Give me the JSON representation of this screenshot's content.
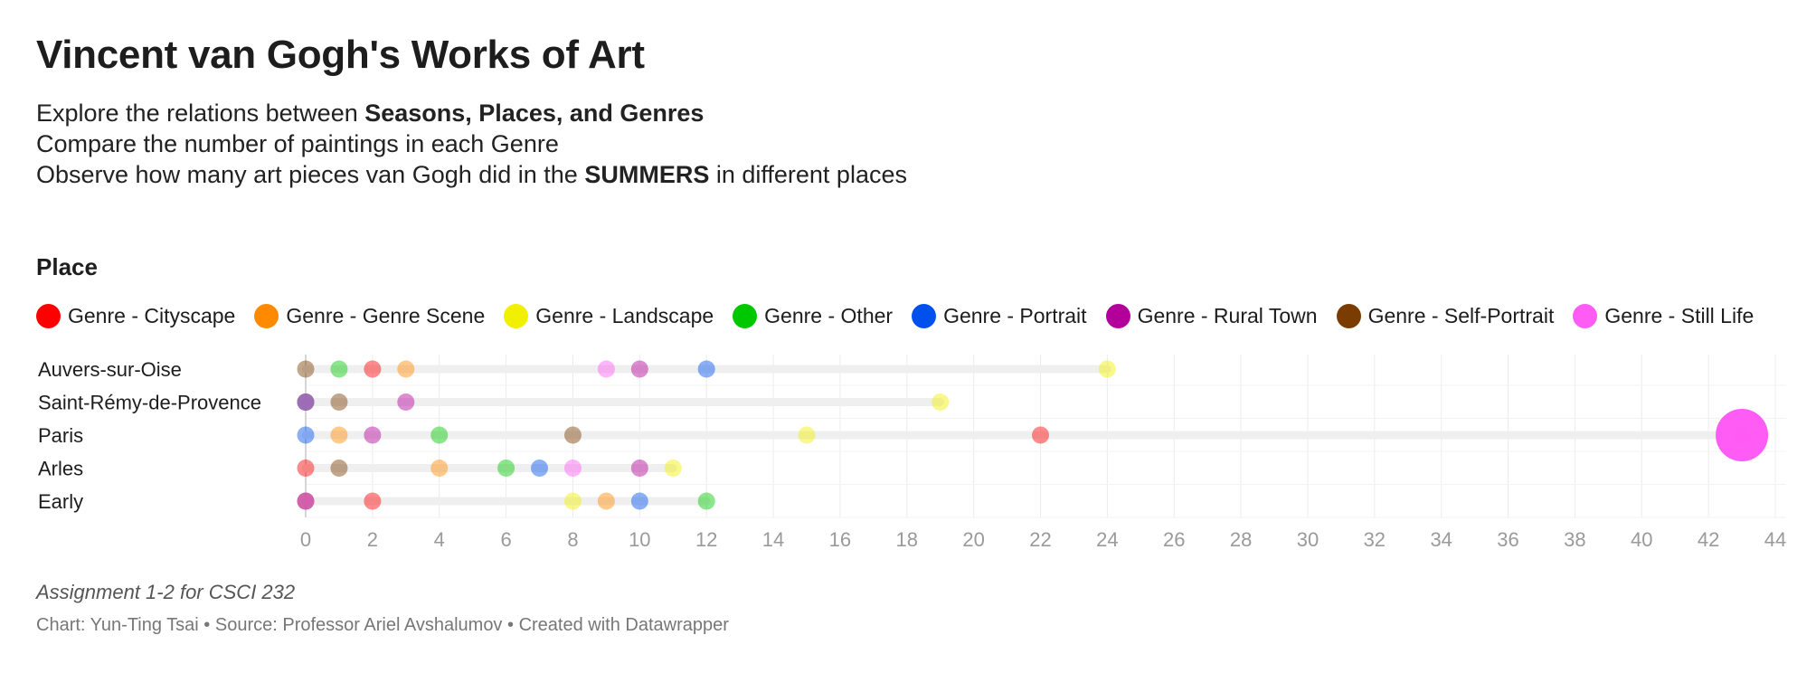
{
  "header": {
    "title": "Vincent van Gogh's Works of Art",
    "line1_prefix": "Explore the relations between ",
    "line1_bold": "Seasons, Places, and Genres",
    "line2": "Compare the number of paintings in each Genre",
    "line3_prefix": "Observe how many art pieces van Gogh did in the ",
    "line3_bold": "SUMMERS",
    "line3_suffix": " in different places",
    "place_label": "Place"
  },
  "legend": [
    {
      "label": "Genre - Cityscape",
      "color": "#ff0000"
    },
    {
      "label": "Genre - Genre Scene",
      "color": "#ff8a00"
    },
    {
      "label": "Genre - Landscape",
      "color": "#f0f000"
    },
    {
      "label": "Genre - Other",
      "color": "#00c800"
    },
    {
      "label": "Genre - Portrait",
      "color": "#0050ee"
    },
    {
      "label": "Genre - Rural Town",
      "color": "#b4009a"
    },
    {
      "label": "Genre - Self-Portrait",
      "color": "#7a3c00"
    },
    {
      "label": "Genre - Still Life",
      "color": "#ff5cf5"
    }
  ],
  "chart_data": {
    "type": "scatter",
    "title": "Vincent van Gogh's Works of Art",
    "xlim": [
      0,
      44
    ],
    "x_ticks": [
      0,
      2,
      4,
      6,
      8,
      10,
      12,
      14,
      16,
      18,
      20,
      22,
      24,
      26,
      28,
      30,
      32,
      34,
      36,
      38,
      40,
      42,
      44
    ],
    "grid": true,
    "legend_position": "top-left",
    "categories": [
      "Auvers-sur-Oise",
      "Saint-Rémy-de-Provence",
      "Paris",
      "Arles",
      "Early"
    ],
    "series": [
      {
        "name": "Genre - Cityscape",
        "values": [
          2,
          0,
          22,
          0,
          2
        ]
      },
      {
        "name": "Genre - Genre Scene",
        "values": [
          3,
          0,
          1,
          4,
          9
        ]
      },
      {
        "name": "Genre - Landscape",
        "values": [
          24,
          19,
          15,
          11,
          8
        ]
      },
      {
        "name": "Genre - Other",
        "values": [
          1,
          0,
          4,
          6,
          12
        ]
      },
      {
        "name": "Genre - Portrait",
        "values": [
          12,
          0,
          0,
          7,
          10
        ]
      },
      {
        "name": "Genre - Rural Town",
        "values": [
          10,
          3,
          2,
          10,
          0
        ]
      },
      {
        "name": "Genre - Self-Portrait",
        "values": [
          0,
          1,
          8,
          1,
          0
        ]
      },
      {
        "name": "Genre - Still Life",
        "values": [
          9,
          0,
          43,
          8,
          0
        ]
      }
    ],
    "highlight": {
      "category": "Paris",
      "series": "Genre - Still Life",
      "value": 43
    }
  },
  "footer": {
    "notes": "Assignment 1-2 for CSCI 232",
    "chart_by_label": "Chart: ",
    "chart_by": "Yun-Ting Tsai",
    "source_label": "Source: ",
    "source": "Professor Ariel Avshalumov",
    "created_with": "Created with Datawrapper",
    "separator": " • "
  }
}
